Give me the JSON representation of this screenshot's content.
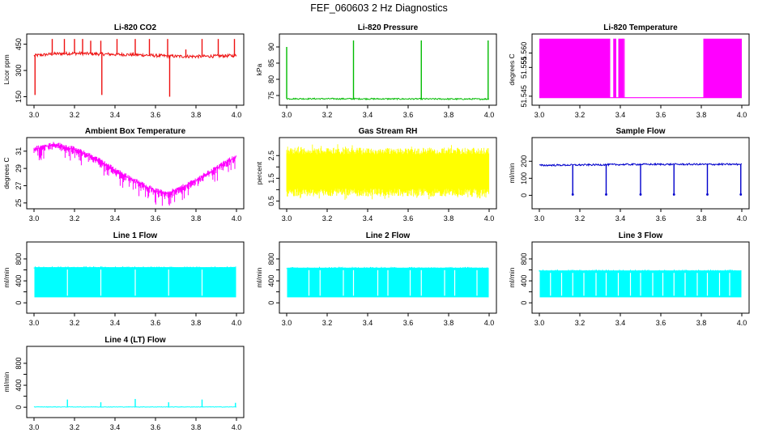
{
  "figure": {
    "title": "FEF_060603  2 Hz Diagnostics"
  },
  "chart_data": [
    {
      "id": "co2",
      "type": "line",
      "title": "Li-820 CO2",
      "ylabel": "Licor ppm",
      "color": "#ee1111",
      "xlim": [
        3.0,
        4.0
      ],
      "ylim": [
        120,
        490
      ],
      "xticks": [
        3.0,
        3.2,
        3.4,
        3.6,
        3.8,
        4.0
      ],
      "xtick_labels": [
        "3.0",
        "3.2",
        "3.4",
        "3.6",
        "3.8",
        "4.0"
      ],
      "yticks": [
        150,
        300,
        450
      ],
      "ytick_labels": [
        "150",
        "300",
        "450"
      ],
      "baseline": 390,
      "noise": 9,
      "x": [
        3.0,
        3.1,
        3.2,
        3.3,
        3.4,
        3.5,
        3.6,
        3.7,
        3.8,
        3.9,
        4.0
      ],
      "y": [
        385,
        395,
        398,
        395,
        392,
        390,
        385,
        381,
        380,
        382,
        385
      ],
      "spikes": [
        {
          "x": 3.005,
          "y": 160
        },
        {
          "x": 3.09,
          "y": 480
        },
        {
          "x": 3.15,
          "y": 480
        },
        {
          "x": 3.2,
          "y": 480
        },
        {
          "x": 3.24,
          "y": 480
        },
        {
          "x": 3.28,
          "y": 470
        },
        {
          "x": 3.33,
          "y": 470
        },
        {
          "x": 3.335,
          "y": 160
        },
        {
          "x": 3.41,
          "y": 480
        },
        {
          "x": 3.5,
          "y": 480
        },
        {
          "x": 3.57,
          "y": 480
        },
        {
          "x": 3.66,
          "y": 480
        },
        {
          "x": 3.67,
          "y": 150
        },
        {
          "x": 3.75,
          "y": 420
        },
        {
          "x": 3.83,
          "y": 480
        },
        {
          "x": 3.91,
          "y": 480
        },
        {
          "x": 3.99,
          "y": 480
        }
      ]
    },
    {
      "id": "pressure",
      "type": "line",
      "title": "Li-820 Pressure",
      "ylabel": "kPa",
      "color": "#00bb00",
      "xlim": [
        3.0,
        4.0
      ],
      "ylim": [
        73,
        93
      ],
      "xticks": [
        3.0,
        3.2,
        3.4,
        3.6,
        3.8,
        4.0
      ],
      "xtick_labels": [
        "3.0",
        "3.2",
        "3.4",
        "3.6",
        "3.8",
        "4.0"
      ],
      "yticks": [
        75,
        80,
        85,
        90
      ],
      "ytick_labels": [
        "75",
        "80",
        "85",
        "90"
      ],
      "baseline": 73.9,
      "noise": 0.2,
      "x": [
        3.0,
        4.0
      ],
      "y": [
        74.0,
        73.9
      ],
      "spikes": [
        {
          "x": 3.0,
          "y": 90
        },
        {
          "x": 3.33,
          "y": 92
        },
        {
          "x": 3.665,
          "y": 92
        },
        {
          "x": 3.995,
          "y": 92
        }
      ]
    },
    {
      "id": "temperature",
      "type": "line",
      "title": "Li-820 Temperature",
      "ylabel": "degrees C",
      "color": "#ff00ff",
      "xlim": [
        3.0,
        4.0
      ],
      "ylim": [
        51.543,
        51.5655
      ],
      "xticks": [
        3.0,
        3.2,
        3.4,
        3.6,
        3.8,
        4.0
      ],
      "xtick_labels": [
        "3.0",
        "3.2",
        "3.4",
        "3.6",
        "3.8",
        "4.0"
      ],
      "yticks": [
        51.545,
        51.555,
        51.56
      ],
      "ytick_labels": [
        "51.545",
        "51.555",
        "51.560"
      ],
      "bands": [
        {
          "x0": 3.0,
          "x1": 3.35
        },
        {
          "x0": 3.365,
          "x1": 3.38
        },
        {
          "x0": 3.39,
          "x1": 3.41
        },
        {
          "x0": 3.81,
          "x1": 4.0
        }
      ],
      "band_low": 51.5445,
      "band_high": 51.565,
      "low_line": 51.5445
    },
    {
      "id": "ambient",
      "type": "line",
      "title": "Ambient Box Temperature",
      "ylabel": "degrees C",
      "color": "#ff00ff",
      "xlim": [
        3.0,
        4.0
      ],
      "ylim": [
        24.7,
        32.2
      ],
      "xticks": [
        3.0,
        3.2,
        3.4,
        3.6,
        3.8,
        4.0
      ],
      "xtick_labels": [
        "3.0",
        "3.2",
        "3.4",
        "3.6",
        "3.8",
        "4.0"
      ],
      "yticks": [
        25,
        27,
        29,
        31
      ],
      "ytick_labels": [
        "25",
        "27",
        "29",
        "31"
      ],
      "x": [
        3.0,
        3.1,
        3.2,
        3.3,
        3.4,
        3.5,
        3.6,
        3.65,
        3.7,
        3.8,
        3.9,
        4.0
      ],
      "y": [
        31.2,
        31.8,
        31.2,
        30.2,
        28.8,
        27.5,
        26.4,
        26.1,
        26.4,
        27.6,
        29.0,
        30.4
      ],
      "noise_down": 1.6
    },
    {
      "id": "rh",
      "type": "line",
      "title": "Gas Stream RH",
      "ylabel": "percent",
      "color": "#ffff00",
      "xlim": [
        3.0,
        4.0
      ],
      "ylim": [
        0.3,
        3.15
      ],
      "xticks": [
        3.0,
        3.2,
        3.4,
        3.6,
        3.8,
        4.0
      ],
      "xtick_labels": [
        "3.0",
        "3.2",
        "3.4",
        "3.6",
        "3.8",
        "4.0"
      ],
      "yticks": [
        0.5,
        1.0,
        1.5,
        2.0,
        2.5
      ],
      "ytick_labels": [
        "0.5",
        "1.5",
        "2.5"
      ],
      "ytick_label_values": [
        0.5,
        1.5,
        2.5
      ],
      "band_low": 0.55,
      "band_high": 2.85
    },
    {
      "id": "sampleflow",
      "type": "line",
      "title": "Sample Flow",
      "ylabel": "ml/min",
      "color": "#0000cc",
      "xlim": [
        3.0,
        4.0
      ],
      "ylim": [
        -60,
        320
      ],
      "xticks": [
        3.0,
        3.2,
        3.4,
        3.6,
        3.8,
        4.0
      ],
      "xtick_labels": [
        "3.0",
        "3.2",
        "3.4",
        "3.6",
        "3.8",
        "4.0"
      ],
      "yticks": [
        0,
        100,
        200
      ],
      "ytick_labels": [
        "0",
        "100",
        "200"
      ],
      "baseline": 178,
      "noise": 5,
      "x": [
        3.0,
        3.5,
        4.0
      ],
      "y": [
        176,
        182,
        182
      ],
      "dips": [
        3.165,
        3.33,
        3.5,
        3.665,
        3.83,
        3.995
      ],
      "dip_y": 5
    },
    {
      "id": "line1",
      "type": "line",
      "title": "Line 1 Flow",
      "ylabel": "ml/min",
      "color": "#00ffff",
      "xlim": [
        3.0,
        4.0
      ],
      "ylim": [
        -130,
        1050
      ],
      "xticks": [
        3.0,
        3.2,
        3.4,
        3.6,
        3.8,
        4.0
      ],
      "xtick_labels": [
        "3.0",
        "3.2",
        "3.4",
        "3.6",
        "3.8",
        "4.0"
      ],
      "yticks": [
        0,
        200,
        400,
        600,
        800
      ],
      "ytick_labels": [
        "0",
        "400",
        "800"
      ],
      "ytick_label_values": [
        0,
        400,
        800
      ],
      "band_low": 100,
      "band_high": 650,
      "gaps": [
        3.165,
        3.33,
        3.5,
        3.665,
        3.83
      ]
    },
    {
      "id": "line2",
      "type": "line",
      "title": "Line 2 Flow",
      "ylabel": "ml/min",
      "color": "#00ffff",
      "xlim": [
        3.0,
        4.0
      ],
      "ylim": [
        -130,
        1050
      ],
      "xticks": [
        3.0,
        3.2,
        3.4,
        3.6,
        3.8,
        4.0
      ],
      "xtick_labels": [
        "3.0",
        "3.2",
        "3.4",
        "3.6",
        "3.8",
        "4.0"
      ],
      "yticks": [
        0,
        200,
        400,
        600,
        800
      ],
      "ytick_labels": [
        "0",
        "400",
        "800"
      ],
      "ytick_label_values": [
        0,
        400,
        800
      ],
      "band_low": 100,
      "band_high": 640,
      "gaps": [
        3.11,
        3.165,
        3.28,
        3.33,
        3.45,
        3.5,
        3.61,
        3.665,
        3.78,
        3.83,
        3.94
      ]
    },
    {
      "id": "line3",
      "type": "line",
      "title": "Line 3 Flow",
      "ylabel": "ml/min",
      "color": "#00ffff",
      "xlim": [
        3.0,
        4.0
      ],
      "ylim": [
        -130,
        1050
      ],
      "xticks": [
        3.0,
        3.2,
        3.4,
        3.6,
        3.8,
        4.0
      ],
      "xtick_labels": [
        "3.0",
        "3.2",
        "3.4",
        "3.6",
        "3.8",
        "4.0"
      ],
      "yticks": [
        0,
        200,
        400,
        600,
        800
      ],
      "ytick_labels": [
        "0",
        "400",
        "800"
      ],
      "ytick_label_values": [
        0,
        400,
        800
      ],
      "band_low": 100,
      "band_high": 590,
      "gaps": [
        3.055,
        3.11,
        3.165,
        3.22,
        3.28,
        3.33,
        3.39,
        3.45,
        3.5,
        3.56,
        3.61,
        3.665,
        3.72,
        3.78,
        3.83,
        3.89,
        3.94
      ]
    },
    {
      "id": "line4",
      "type": "line",
      "title": "Line 4 (LT) Flow",
      "ylabel": "ml/min",
      "color": "#00ffff",
      "xlim": [
        3.0,
        4.0
      ],
      "ylim": [
        -130,
        1050
      ],
      "xticks": [
        3.0,
        3.2,
        3.4,
        3.6,
        3.8,
        4.0
      ],
      "xtick_labels": [
        "3.0",
        "3.2",
        "3.4",
        "3.6",
        "3.8",
        "4.0"
      ],
      "yticks": [
        0,
        200,
        400,
        600,
        800
      ],
      "ytick_labels": [
        "0",
        "400",
        "800"
      ],
      "ytick_label_values": [
        0,
        400,
        800
      ],
      "baseline": 5,
      "noise": 4,
      "x": [
        3.0,
        4.0
      ],
      "y": [
        5,
        5
      ],
      "spikes": [
        {
          "x": 3.165,
          "y": 140
        },
        {
          "x": 3.33,
          "y": 90
        },
        {
          "x": 3.5,
          "y": 150
        },
        {
          "x": 3.665,
          "y": 90
        },
        {
          "x": 3.83,
          "y": 140
        },
        {
          "x": 3.995,
          "y": 80
        }
      ]
    }
  ]
}
